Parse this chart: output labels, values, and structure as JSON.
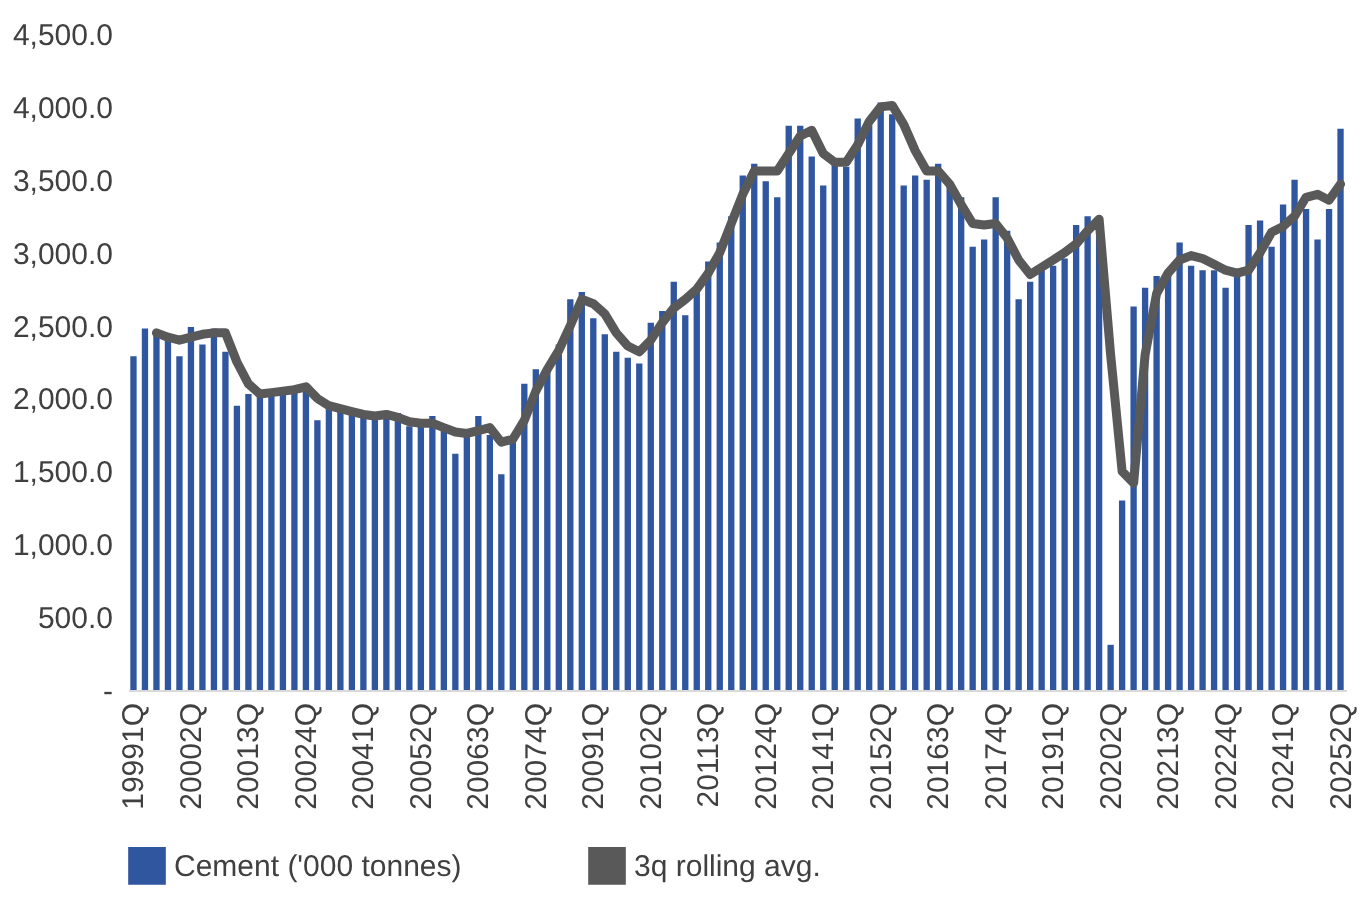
{
  "chart_data": {
    "type": "bar",
    "categories": [
      "19991Q",
      null,
      null,
      null,
      null,
      "20002Q",
      null,
      null,
      null,
      null,
      "20013Q",
      null,
      null,
      null,
      null,
      "20024Q",
      null,
      null,
      null,
      null,
      "20041Q",
      null,
      null,
      null,
      null,
      "20052Q",
      null,
      null,
      null,
      null,
      "20063Q",
      null,
      null,
      null,
      null,
      "20074Q",
      null,
      null,
      null,
      null,
      "20091Q",
      null,
      null,
      null,
      null,
      "20102Q",
      null,
      null,
      null,
      null,
      "20113Q",
      null,
      null,
      null,
      null,
      "20124Q",
      null,
      null,
      null,
      null,
      "20141Q",
      null,
      null,
      null,
      null,
      "20152Q",
      null,
      null,
      null,
      null,
      "20163Q",
      null,
      null,
      null,
      null,
      "20174Q",
      null,
      null,
      null,
      null,
      "20191Q",
      null,
      null,
      null,
      null,
      "20202Q",
      null,
      null,
      null,
      null,
      "20213Q",
      null,
      null,
      null,
      null,
      "20224Q",
      null,
      null,
      null,
      null,
      "20241Q",
      null,
      null,
      null,
      null,
      "20252Q"
    ],
    "series": [
      {
        "name": "Cement ('000 tonnes)",
        "color": "#3056a0",
        "values": [
          2290,
          2480,
          2470,
          2410,
          2290,
          2490,
          2370,
          2480,
          2320,
          1950,
          2030,
          2030,
          2050,
          2050,
          2080,
          2080,
          1850,
          1940,
          1930,
          1900,
          1880,
          1880,
          1900,
          1900,
          1810,
          1850,
          1880,
          1800,
          1620,
          1750,
          1880,
          1750,
          1480,
          1720,
          2100,
          2200,
          2210,
          2370,
          2680,
          2730,
          2550,
          2440,
          2320,
          2280,
          2240,
          2520,
          2600,
          2800,
          2570,
          2730,
          2940,
          3070,
          3250,
          3530,
          3610,
          3490,
          3380,
          3870,
          3870,
          3660,
          3460,
          3610,
          3590,
          3920,
          3870,
          4030,
          3950,
          3460,
          3530,
          3500,
          3610,
          3460,
          3380,
          3040,
          3090,
          3380,
          3150,
          2680,
          2800,
          2880,
          2910,
          2960,
          3190,
          3250,
          3190,
          310,
          1300,
          2630,
          2760,
          2840,
          2860,
          3070,
          2910,
          2880,
          2880,
          2760,
          2860,
          3190,
          3220,
          3040,
          3330,
          3500,
          3300,
          3090,
          3300,
          3850
        ]
      },
      {
        "name": "3q rolling avg.",
        "type": "line",
        "color": "#595959",
        "values": [
          null,
          null,
          2450,
          2420,
          2400,
          2420,
          2440,
          2450,
          2450,
          2250,
          2100,
          2030,
          2040,
          2050,
          2060,
          2080,
          2000,
          1950,
          1930,
          1910,
          1890,
          1880,
          1890,
          1870,
          1840,
          1830,
          1830,
          1800,
          1770,
          1760,
          1780,
          1800,
          1700,
          1720,
          1850,
          2050,
          2200,
          2330,
          2500,
          2680,
          2650,
          2580,
          2450,
          2360,
          2320,
          2400,
          2520,
          2620,
          2680,
          2750,
          2860,
          3000,
          3200,
          3400,
          3560,
          3560,
          3560,
          3680,
          3800,
          3840,
          3680,
          3620,
          3620,
          3740,
          3900,
          4000,
          4010,
          3880,
          3700,
          3560,
          3560,
          3470,
          3330,
          3200,
          3190,
          3200,
          3100,
          2950,
          2850,
          2900,
          2950,
          3000,
          3060,
          3150,
          3230,
          2300,
          1500,
          1420,
          2300,
          2720,
          2860,
          2950,
          2980,
          2960,
          2920,
          2880,
          2860,
          2880,
          3000,
          3140,
          3180,
          3250,
          3380,
          3400,
          3360,
          3470
        ]
      }
    ],
    "ylim": [
      0,
      4500
    ],
    "yticks": [
      {
        "value": 0,
        "label": "-"
      },
      {
        "value": 500,
        "label": "500.0"
      },
      {
        "value": 1000,
        "label": "1,000.0"
      },
      {
        "value": 1500,
        "label": "1,500.0"
      },
      {
        "value": 2000,
        "label": "2,000.0"
      },
      {
        "value": 2500,
        "label": "2,500.0"
      },
      {
        "value": 3000,
        "label": "3,000.0"
      },
      {
        "value": 3500,
        "label": "3,500.0"
      },
      {
        "value": 4000,
        "label": "4,000.0"
      },
      {
        "value": 4500,
        "label": "4,500.0"
      }
    ],
    "grid": false,
    "legend": "bottom"
  }
}
